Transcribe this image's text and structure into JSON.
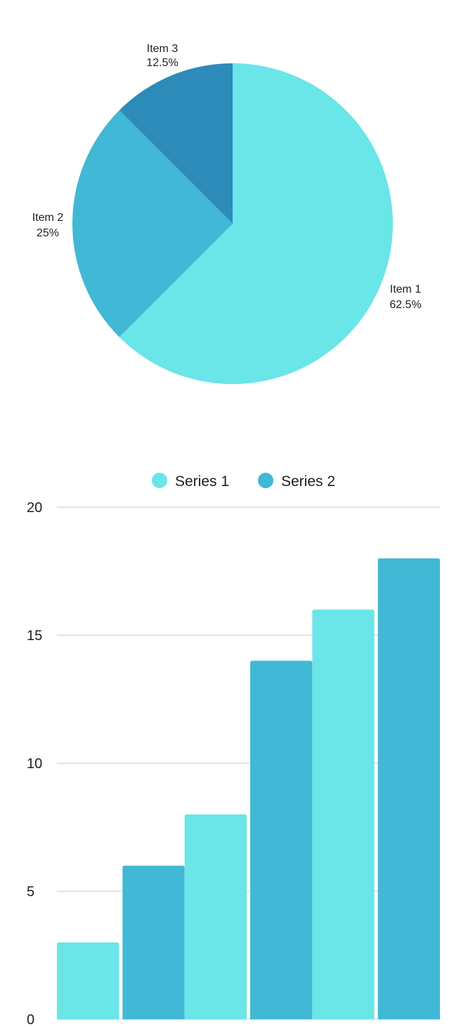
{
  "colors": {
    "series_1": "#6ae5e8",
    "series_2": "#41b8d5",
    "item_3": "#2d8bba"
  },
  "chart_data": [
    {
      "type": "pie",
      "slices": [
        {
          "label": "Item 1",
          "value": 62.5,
          "value_label": "62.5%",
          "color": "#6ae5e8"
        },
        {
          "label": "Item 2",
          "value": 25,
          "value_label": "25%",
          "color": "#41b8d5"
        },
        {
          "label": "Item 3",
          "value": 12.5,
          "value_label": "12.5%",
          "color": "#2d8bba"
        }
      ],
      "start": "top",
      "direction": "clockwise"
    },
    {
      "type": "bar",
      "categories": [
        "",
        "",
        ""
      ],
      "series": [
        {
          "name": "Series 1",
          "values": [
            3,
            8,
            16
          ],
          "color": "#6ae5e8"
        },
        {
          "name": "Series 2",
          "values": [
            6,
            14,
            18
          ],
          "color": "#41b8d5"
        }
      ],
      "ylim": [
        0,
        20
      ],
      "yticks": [
        0,
        5,
        10,
        15,
        20
      ],
      "ytick_labels": [
        "0",
        "5",
        "10",
        "15",
        "20"
      ],
      "grid": true,
      "legend": "top-center"
    }
  ]
}
